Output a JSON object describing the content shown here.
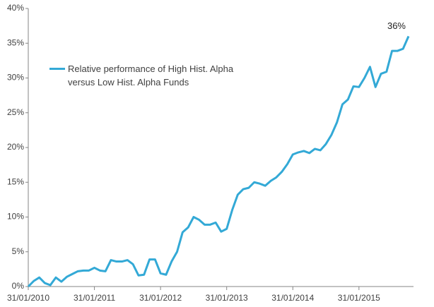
{
  "chart_data": {
    "type": "line",
    "categories": [
      "31/01/2010",
      null,
      null,
      null,
      null,
      null,
      null,
      null,
      null,
      null,
      null,
      null,
      "31/01/2011",
      null,
      null,
      null,
      null,
      null,
      null,
      null,
      null,
      null,
      null,
      null,
      "31/01/2012",
      null,
      null,
      null,
      null,
      null,
      null,
      null,
      null,
      null,
      null,
      null,
      "31/01/2013",
      null,
      null,
      null,
      null,
      null,
      null,
      null,
      null,
      null,
      null,
      null,
      "31/01/2014",
      null,
      null,
      null,
      null,
      null,
      null,
      null,
      null,
      null,
      null,
      null,
      "31/01/2015",
      null,
      null,
      null,
      null,
      null,
      null,
      null,
      null,
      null
    ],
    "series": [
      {
        "name": "Relative performance of High Hist. Alpha versus Low Hist. Alpha Funds",
        "color": "#33a9d6",
        "values": [
          0,
          0.8,
          1.3,
          0.5,
          0.2,
          1.3,
          0.7,
          1.4,
          1.8,
          2.2,
          2.3,
          2.3,
          2.7,
          2.3,
          2.2,
          3.8,
          3.6,
          3.6,
          3.8,
          3.2,
          1.6,
          1.7,
          3.9,
          3.9,
          1.9,
          1.7,
          3.6,
          5.0,
          7.8,
          8.5,
          10.0,
          9.6,
          8.9,
          8.9,
          9.2,
          7.9,
          8.3,
          11.0,
          13.2,
          14.0,
          14.2,
          15.0,
          14.8,
          14.5,
          15.2,
          15.7,
          16.5,
          17.6,
          19.0,
          19.3,
          19.5,
          19.2,
          19.8,
          19.6,
          20.5,
          21.8,
          23.6,
          26.2,
          26.9,
          28.8,
          28.7,
          30.0,
          31.6,
          28.7,
          30.6,
          30.9,
          33.9,
          33.9,
          34.2,
          36.0
        ],
        "value_labels": [
          null,
          null,
          null,
          null,
          null,
          null,
          null,
          null,
          null,
          null,
          null,
          null,
          null,
          null,
          null,
          null,
          null,
          null,
          null,
          null,
          null,
          null,
          null,
          null,
          null,
          null,
          null,
          null,
          null,
          null,
          null,
          null,
          null,
          null,
          null,
          null,
          null,
          null,
          null,
          null,
          null,
          null,
          null,
          null,
          null,
          null,
          null,
          null,
          null,
          null,
          null,
          null,
          null,
          null,
          null,
          null,
          null,
          null,
          null,
          null,
          null,
          null,
          null,
          null,
          null,
          null,
          null,
          null,
          null,
          "36%"
        ]
      }
    ],
    "ylim": [
      0,
      40
    ],
    "yticks": [
      {
        "value": 0,
        "label": "0%"
      },
      {
        "value": 5,
        "label": "5%"
      },
      {
        "value": 10,
        "label": "10%"
      },
      {
        "value": 15,
        "label": "15%"
      },
      {
        "value": 20,
        "label": "20%"
      },
      {
        "value": 25,
        "label": "25%"
      },
      {
        "value": 30,
        "label": "30%"
      },
      {
        "value": 35,
        "label": "35%"
      },
      {
        "value": 40,
        "label": "40%"
      }
    ],
    "grid": false,
    "legend": "upper left"
  }
}
